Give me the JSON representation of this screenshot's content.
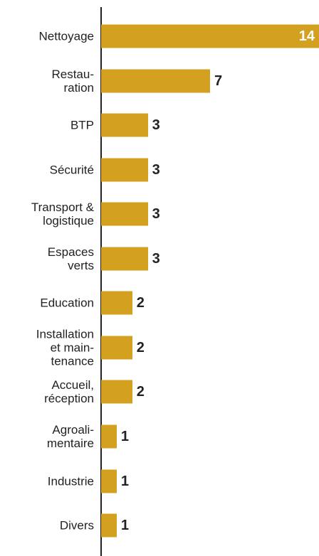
{
  "chart_data": {
    "type": "bar",
    "orientation": "horizontal",
    "categories": [
      "Nettoyage",
      "Restau-\nration",
      "BTP",
      "Sécurité",
      "Transport &\nlogistique",
      "Espaces\nverts",
      "Education",
      "Installation\net main-\ntenance",
      "Accueil,\nréception",
      "Agroali-\nmentaire",
      "Industrie",
      "Divers"
    ],
    "values": [
      14,
      7,
      3,
      3,
      3,
      3,
      2,
      2,
      2,
      1,
      1,
      1
    ],
    "color": "#d4a020",
    "xlim": [
      0,
      14
    ]
  }
}
